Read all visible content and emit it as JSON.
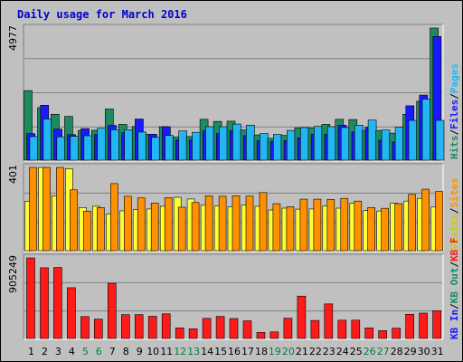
{
  "chart_data": {
    "type": "bar",
    "title": "Daily usage for March 2016",
    "categories": [
      "1",
      "2",
      "3",
      "4",
      "5",
      "6",
      "7",
      "8",
      "9",
      "10",
      "11",
      "12",
      "13",
      "14",
      "15",
      "16",
      "17",
      "18",
      "19",
      "20",
      "21",
      "22",
      "23",
      "24",
      "25",
      "26",
      "27",
      "28",
      "29",
      "30",
      "31"
    ],
    "weekend_days": [
      "5",
      "6",
      "12",
      "13",
      "19",
      "20",
      "26",
      "27"
    ],
    "panels": [
      {
        "max_label": "4977",
        "ylim": [
          0,
          4977
        ],
        "series": [
          {
            "name": "Hits",
            "color": "#1d8a5f",
            "values": [
              2620,
              1980,
              1730,
              1650,
              1120,
              1130,
              1930,
              1350,
              1270,
              970,
              1260,
              870,
              890,
              1540,
              1460,
              1470,
              1140,
              950,
              820,
              930,
              1220,
              1210,
              1350,
              1540,
              1530,
              1120,
              1120,
              1020,
              1730,
              2220,
              4977
            ]
          },
          {
            "name": "Files",
            "color": "#1a1aff",
            "values": [
              1000,
              2070,
              1170,
              960,
              1190,
              960,
              1310,
              1040,
              1550,
              980,
              1260,
              760,
              760,
              1100,
              1000,
              1110,
              920,
              740,
              710,
              740,
              840,
              970,
              970,
              1320,
              1060,
              1240,
              750,
              680,
              2050,
              2450,
              4660
            ]
          },
          {
            "name": "Pages",
            "color": "#22b7f2",
            "values": [
              890,
              1550,
              880,
              900,
              920,
              1200,
              1150,
              1150,
              1060,
              860,
              930,
              1100,
              1050,
              1260,
              1260,
              1360,
              1320,
              1000,
              970,
              1120,
              1230,
              1270,
              1260,
              1230,
              1320,
              1510,
              1140,
              1240,
              1500,
              2300,
              1500
            ]
          }
        ]
      },
      {
        "max_label": "401",
        "ylim": [
          0,
          401
        ],
        "series": [
          {
            "name": "Visits",
            "color": "#ffff33",
            "values": [
              238,
              401,
              264,
              395,
              208,
              214,
              176,
              192,
              198,
              201,
              214,
              257,
              249,
              219,
              215,
              211,
              220,
              214,
              196,
              205,
              200,
              201,
              215,
              205,
              229,
              193,
              191,
              228,
              239,
              252,
              210
            ]
          },
          {
            "name": "Sites",
            "color": "#ff9000",
            "values": [
              401,
              401,
              401,
              293,
              190,
              208,
              323,
              262,
              254,
              229,
              256,
              209,
              232,
              264,
              262,
              264,
              263,
              280,
              226,
              212,
              248,
              248,
              247,
              252,
              239,
              208,
              204,
              226,
              271,
              296,
              285
            ]
          }
        ]
      },
      {
        "max_label": "905249",
        "ylim": [
          0,
          905249
        ],
        "series": [
          {
            "name": "KB F",
            "color": "#ff1a1a",
            "values": [
              905249,
              794000,
              797000,
              571000,
              246000,
              218000,
              620000,
              267000,
              267000,
              249000,
              277000,
              119000,
              109000,
              226000,
              247000,
              224000,
              198000,
              68000,
              73000,
              228000,
              476000,
              202000,
              389000,
              205000,
              205000,
              119000,
              88000,
              116000,
              272000,
              285000,
              311000
            ]
          }
        ]
      }
    ],
    "legend_right": {
      "top": [
        {
          "text": "Hits",
          "color": "#1d8a5f"
        },
        {
          "text": "Files",
          "color": "#1a1aff"
        },
        {
          "text": "Pages",
          "color": "#22b7f2"
        }
      ],
      "middle": [
        {
          "text": "Visits",
          "color": "#cccc00"
        },
        {
          "text": "Sites",
          "color": "#ff9000"
        }
      ],
      "bottom": [
        {
          "text": "KB In",
          "color": "#1a1aff"
        },
        {
          "text": "KB Out",
          "color": "#1d8a5f"
        },
        {
          "text": "KB F",
          "color": "#ff1a1a"
        }
      ]
    },
    "colors": {
      "background": "#c0c0c0",
      "title_color": "#0000cc",
      "weekday_label": "#000000",
      "weekend_label": "#008040",
      "grid": "#808080"
    }
  }
}
